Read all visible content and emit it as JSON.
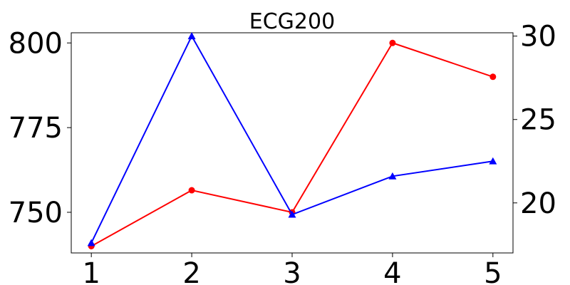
{
  "chart_data": {
    "type": "line",
    "title": "ECG200",
    "x": [
      1,
      2,
      3,
      4,
      5
    ],
    "xticks": [
      "1",
      "2",
      "3",
      "4",
      "5"
    ],
    "xlim": [
      0.8,
      5.2
    ],
    "left_axis": {
      "ylim": [
        738,
        803
      ],
      "ticks": [
        750,
        775,
        800
      ]
    },
    "right_axis": {
      "ylim": [
        17.0,
        30.2
      ],
      "ticks": [
        20,
        25,
        30
      ]
    },
    "series": [
      {
        "axis": "left",
        "color": "#ff0000",
        "marker": "circle",
        "values": [
          740,
          756.5,
          750,
          800,
          790
        ]
      },
      {
        "axis": "right",
        "color": "#0000ff",
        "marker": "triangle",
        "values": [
          17.6,
          30.0,
          19.3,
          21.6,
          22.5
        ]
      }
    ],
    "grid": false,
    "legend": "none"
  }
}
